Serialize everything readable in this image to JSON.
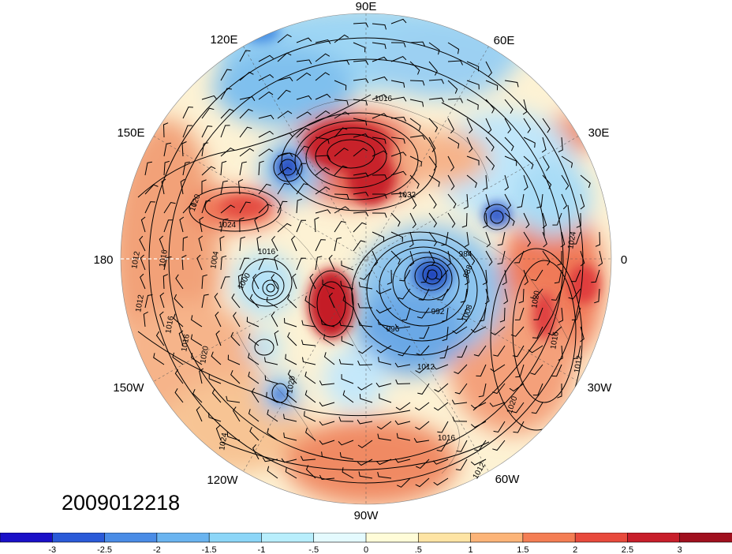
{
  "map": {
    "projection": "north-polar-stereographic",
    "longitude_labels": [
      "90E",
      "60E",
      "30E",
      "0",
      "30W",
      "60W",
      "90W",
      "120W",
      "150W",
      "180",
      "150E",
      "120E"
    ],
    "contour_labels": [
      "1016",
      "1020",
      "1024",
      "1016",
      "1012",
      "1004",
      "1016",
      "1000",
      "1032",
      "988",
      "984",
      "992",
      "996",
      "1008",
      "1012",
      "1016",
      "1020",
      "1024",
      "1012",
      "1016",
      "1016",
      "1012",
      "1016",
      "1020",
      "1024",
      "1020",
      "1020",
      "1012"
    ],
    "anomaly_colors": {
      "strong_negative": "#1030c8",
      "negative": "#5aa0e6",
      "weak_negative": "#c8f0ff",
      "weak_positive": "#fff0c0",
      "positive": "#f08a60",
      "strong_positive": "#b80a1e"
    }
  },
  "timestamp": "2009012218",
  "colorbar": {
    "ticks": [
      "-3",
      "-2.5",
      "-2",
      "-1.5",
      "-1",
      "-.5",
      "0",
      ".5",
      "1",
      "1.5",
      "2",
      "2.5",
      "3"
    ],
    "colors": [
      "#1a10c8",
      "#2a5ad8",
      "#4a8ce6",
      "#6ab4f0",
      "#8cd6f8",
      "#b8eefc",
      "#e4fafe",
      "#fffcd8",
      "#fee4a4",
      "#fcb478",
      "#f47e54",
      "#e84a3c",
      "#c81e2a",
      "#a0101e"
    ]
  }
}
